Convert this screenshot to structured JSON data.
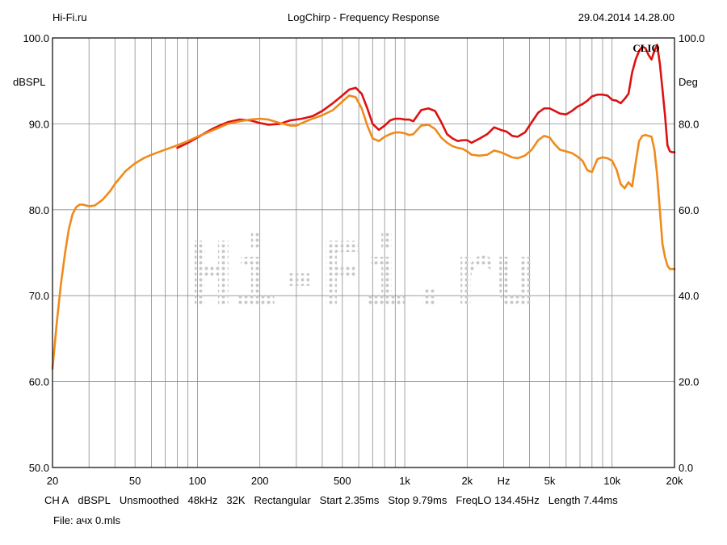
{
  "header": {
    "left": "Hi-Fi.ru",
    "center": "LogChirp - Frequency Response",
    "right": "29.04.2014 14.28.00"
  },
  "brand_label": "CLIO",
  "watermark_text": "Hi-Fi.ru",
  "footer": {
    "params": [
      "CH A",
      "dBSPL",
      "Unsmoothed",
      "48kHz",
      "32K",
      "Rectangular",
      "Start 2.35ms",
      "Stop 9.79ms",
      "FreqLO 134.45Hz",
      "Length 7.44ms"
    ],
    "file": "File: ачх 0.mls"
  },
  "colors": {
    "series_red": "#dd1111",
    "series_orange": "#f08a1c",
    "grid": "#8c8c8c",
    "watermark": "#c8c8c8"
  },
  "chart_data": {
    "type": "line",
    "title": "LogChirp - Frequency Response",
    "xscale": "log",
    "xlim": [
      20,
      20000
    ],
    "ylim": [
      50,
      100
    ],
    "y2lim": [
      0,
      100
    ],
    "ylabel": "dBSPL",
    "y2label": "Deg",
    "xlabel": "Hz",
    "grid": true,
    "x_ticks": [
      {
        "value": 20,
        "label": "20"
      },
      {
        "value": 50,
        "label": "50"
      },
      {
        "value": 100,
        "label": "100"
      },
      {
        "value": 200,
        "label": "200"
      },
      {
        "value": 500,
        "label": "500"
      },
      {
        "value": 1000,
        "label": "1k"
      },
      {
        "value": 2000,
        "label": "2k"
      },
      {
        "value": 5000,
        "label": "5k"
      },
      {
        "value": 10000,
        "label": "10k"
      },
      {
        "value": 20000,
        "label": "20k"
      }
    ],
    "y_ticks": [
      {
        "value": 50,
        "label": "50.0"
      },
      {
        "value": 60,
        "label": "60.0"
      },
      {
        "value": 70,
        "label": "70.0"
      },
      {
        "value": 80,
        "label": "80.0"
      },
      {
        "value": 90,
        "label": "90.0"
      },
      {
        "value": 100,
        "label": "100.0"
      }
    ],
    "y2_ticks": [
      {
        "value": 0,
        "label": "0.0"
      },
      {
        "value": 20,
        "label": "20.0"
      },
      {
        "value": 40,
        "label": "40.0"
      },
      {
        "value": 60,
        "label": "60.0"
      },
      {
        "value": 80,
        "label": "80.0"
      },
      {
        "value": 100,
        "label": "100.0"
      }
    ],
    "series": [
      {
        "color": "#dd1111",
        "x": [
          80,
          90,
          100,
          110,
          120,
          140,
          160,
          180,
          200,
          220,
          250,
          280,
          320,
          360,
          400,
          450,
          500,
          540,
          580,
          620,
          660,
          700,
          750,
          800,
          850,
          900,
          950,
          1000,
          1050,
          1100,
          1200,
          1300,
          1400,
          1500,
          1600,
          1700,
          1800,
          1900,
          2000,
          2100,
          2300,
          2500,
          2700,
          2900,
          3100,
          3300,
          3500,
          3800,
          4100,
          4400,
          4700,
          5000,
          5300,
          5600,
          6000,
          6400,
          6800,
          7200,
          7600,
          8000,
          8500,
          9000,
          9500,
          10000,
          10500,
          11000,
          11500,
          12000,
          12500,
          13000,
          13500,
          14000,
          14500,
          15000,
          15500,
          16000,
          16500,
          17000,
          17500,
          18000,
          18500,
          19000,
          19500,
          20000
        ],
        "y": [
          87.2,
          87.8,
          88.4,
          89.0,
          89.5,
          90.2,
          90.5,
          90.4,
          90.1,
          89.9,
          90.0,
          90.4,
          90.6,
          90.9,
          91.5,
          92.4,
          93.3,
          94.0,
          94.2,
          93.5,
          91.8,
          90.0,
          89.3,
          89.8,
          90.4,
          90.6,
          90.6,
          90.5,
          90.5,
          90.3,
          91.6,
          91.8,
          91.5,
          90.2,
          88.8,
          88.3,
          88.0,
          88.1,
          88.1,
          87.8,
          88.3,
          88.8,
          89.6,
          89.3,
          89.1,
          88.6,
          88.5,
          89.0,
          90.2,
          91.3,
          91.8,
          91.8,
          91.5,
          91.2,
          91.1,
          91.5,
          92.0,
          92.3,
          92.7,
          93.2,
          93.4,
          93.4,
          93.3,
          92.8,
          92.7,
          92.4,
          92.9,
          93.5,
          96.0,
          97.5,
          98.5,
          99.0,
          98.8,
          98.0,
          97.5,
          98.5,
          99.2,
          97.0,
          94.0,
          91.0,
          87.5,
          86.8,
          86.7,
          86.7
        ]
      },
      {
        "color": "#f08a1c",
        "x": [
          20,
          21,
          22,
          23,
          24,
          25,
          26,
          27,
          28,
          30,
          32,
          35,
          38,
          40,
          45,
          50,
          55,
          60,
          70,
          80,
          90,
          100,
          120,
          140,
          160,
          180,
          200,
          220,
          250,
          280,
          300,
          320,
          350,
          400,
          450,
          500,
          540,
          580,
          620,
          660,
          700,
          750,
          800,
          850,
          900,
          950,
          1000,
          1050,
          1100,
          1200,
          1300,
          1400,
          1500,
          1600,
          1700,
          1800,
          1900,
          2000,
          2100,
          2300,
          2500,
          2700,
          2900,
          3100,
          3300,
          3500,
          3800,
          4100,
          4400,
          4700,
          5000,
          5300,
          5600,
          6000,
          6400,
          6800,
          7200,
          7600,
          8000,
          8500,
          9000,
          9500,
          10000,
          10500,
          11000,
          11500,
          12000,
          12500,
          13000,
          13500,
          14000,
          14500,
          15000,
          15500,
          16000,
          16500,
          17000,
          17500,
          18000,
          18500,
          19000,
          19500,
          20000
        ],
        "y": [
          61.5,
          67.0,
          71.5,
          75.0,
          77.8,
          79.5,
          80.3,
          80.6,
          80.6,
          80.4,
          80.5,
          81.2,
          82.2,
          83.0,
          84.5,
          85.4,
          86.0,
          86.4,
          87.0,
          87.5,
          88.0,
          88.5,
          89.3,
          90.0,
          90.3,
          90.5,
          90.6,
          90.5,
          90.1,
          89.8,
          89.8,
          90.1,
          90.5,
          91.0,
          91.6,
          92.6,
          93.3,
          93.1,
          91.8,
          89.8,
          88.3,
          88.0,
          88.5,
          88.8,
          89.0,
          89.0,
          88.9,
          88.7,
          88.8,
          89.8,
          89.9,
          89.4,
          88.4,
          87.8,
          87.4,
          87.2,
          87.1,
          86.8,
          86.4,
          86.3,
          86.4,
          86.9,
          86.7,
          86.4,
          86.1,
          86.0,
          86.3,
          87.0,
          88.1,
          88.6,
          88.4,
          87.6,
          87.0,
          86.8,
          86.6,
          86.2,
          85.7,
          84.6,
          84.4,
          85.9,
          86.1,
          86.0,
          85.7,
          84.7,
          83.0,
          82.5,
          83.2,
          82.7,
          85.5,
          88.0,
          88.6,
          88.7,
          88.6,
          88.5,
          87.0,
          84.0,
          80.0,
          76.0,
          74.5,
          73.5,
          73.1,
          73.1,
          73.1
        ]
      }
    ]
  }
}
